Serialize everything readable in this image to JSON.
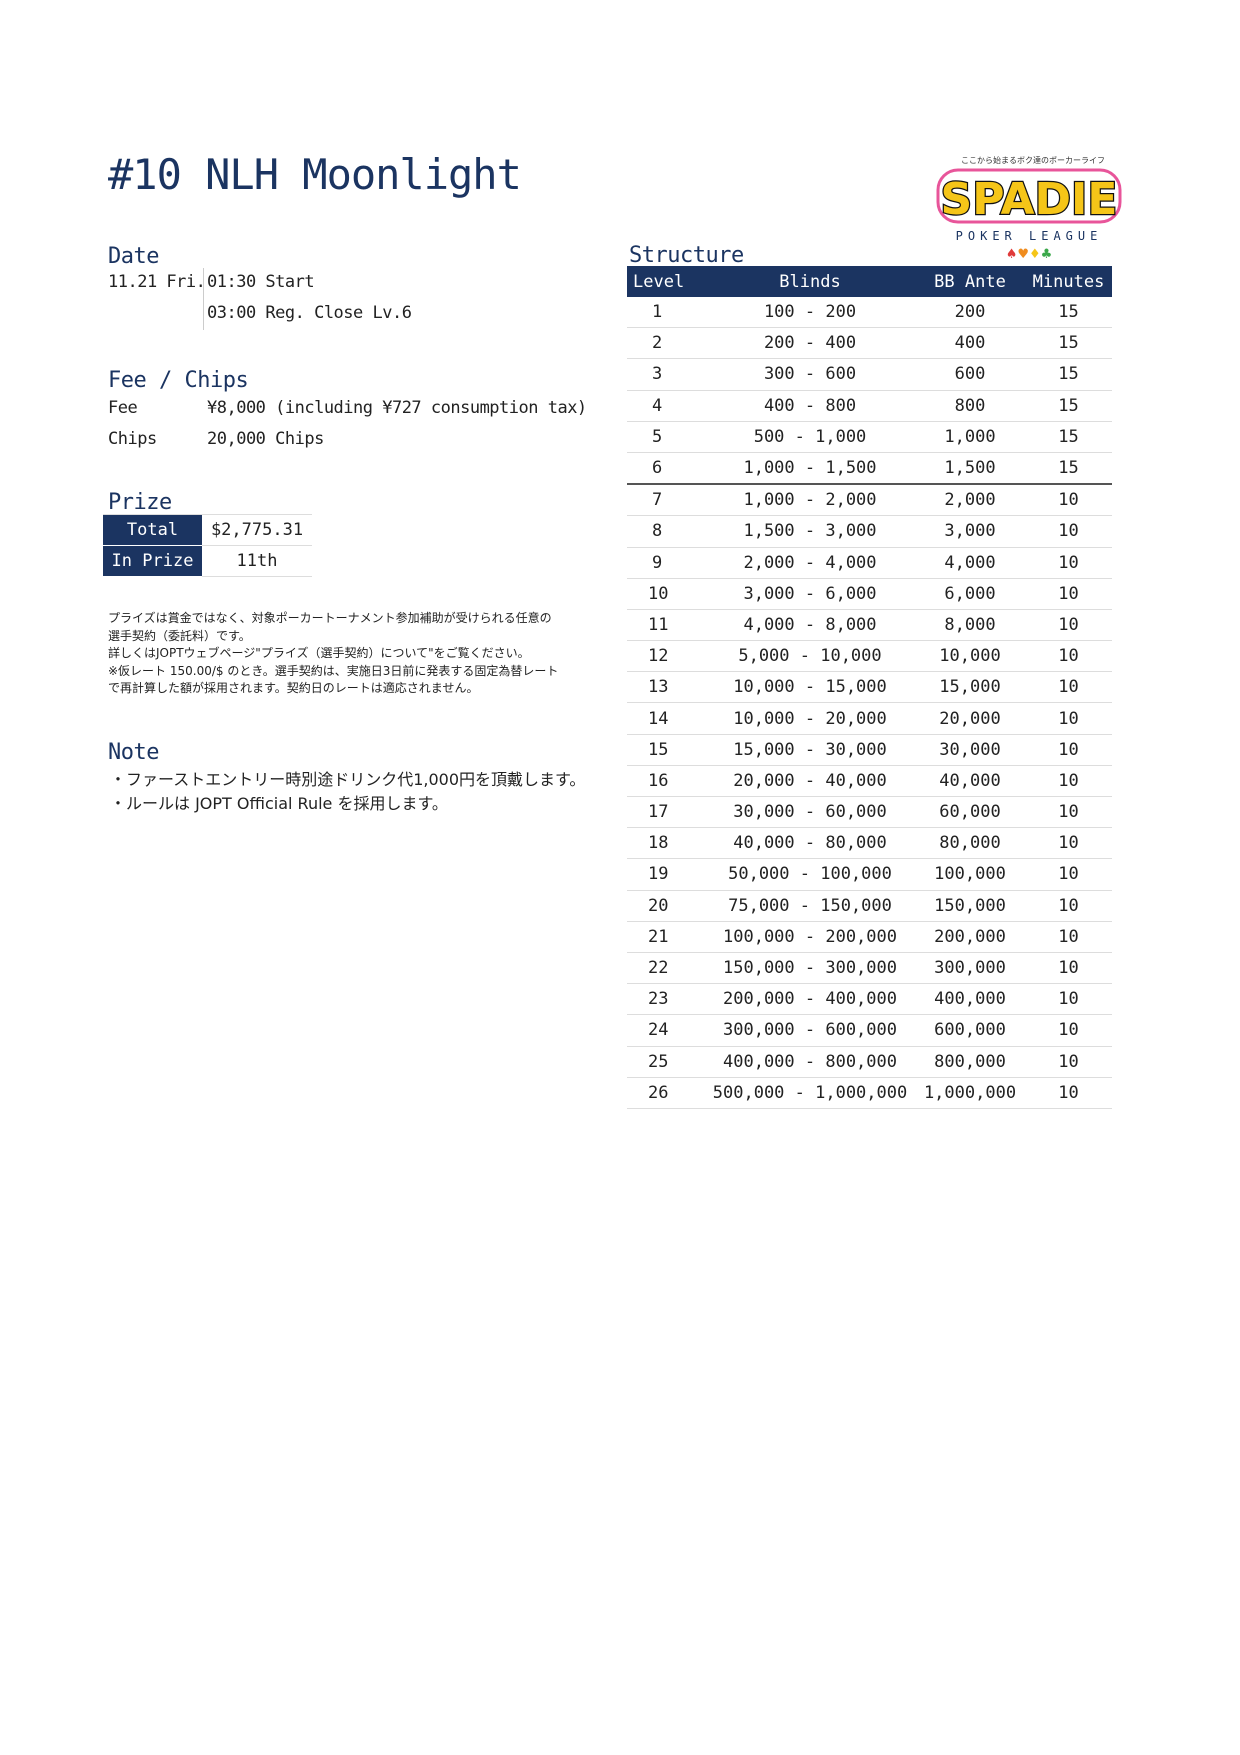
{
  "title": "#10 NLH Moonlight",
  "date": {
    "heading": "Date",
    "day": "11.21 Fri.",
    "lines": [
      "01:30 Start",
      "03:00 Reg. Close Lv.6"
    ]
  },
  "fee": {
    "heading": "Fee / Chips",
    "fee_label": "Fee",
    "fee_value": "¥8,000 (including ¥727 consumption tax)",
    "chips_label": "Chips",
    "chips_value": "20,000 Chips"
  },
  "prize": {
    "heading": "Prize",
    "total_label": "Total",
    "total_value": "$2,775.31",
    "in_prize_label": "In Prize",
    "in_prize_value": "11th"
  },
  "disclaimer": [
    "プライズは賞金ではなく、対象ポーカートーナメント参加補助が受けられる任意の",
    "選手契約（委託料）です。",
    "詳しくはJOPTウェブページ\"プライズ（選手契約）について\"をご覧ください。",
    "※仮レート 150.00/$ のとき。選手契約は、実施日3日前に発表する固定為替レート",
    "で再計算した額が採用されます。契約日のレートは適応されません。"
  ],
  "note": {
    "heading": "Note",
    "items": [
      "・ファーストエントリー時別途ドリンク代1,000円を頂戴します。",
      "・ルールは JOPT Official Rule を採用します。"
    ]
  },
  "logo": {
    "tagline": "ここから始まるボク達のポーカーライフ",
    "name": "SPADIE",
    "sub": "POKER LEAGUE"
  },
  "structure": {
    "heading": "Structure",
    "columns": [
      "Level",
      "Blinds",
      "BB Ante",
      "Minutes"
    ],
    "rows": [
      [
        "1",
        "100 - 200",
        "200",
        "15"
      ],
      [
        "2",
        "200 - 400",
        "400",
        "15"
      ],
      [
        "3",
        "300 - 600",
        "600",
        "15"
      ],
      [
        "4",
        "400 - 800",
        "800",
        "15"
      ],
      [
        "5",
        "500 - 1,000",
        "1,000",
        "15"
      ],
      [
        "6",
        "1,000 - 1,500",
        "1,500",
        "15"
      ],
      [
        "7",
        "1,000 - 2,000",
        "2,000",
        "10"
      ],
      [
        "8",
        "1,500 - 3,000",
        "3,000",
        "10"
      ],
      [
        "9",
        "2,000 - 4,000",
        "4,000",
        "10"
      ],
      [
        "10",
        "3,000 - 6,000",
        "6,000",
        "10"
      ],
      [
        "11",
        "4,000 - 8,000",
        "8,000",
        "10"
      ],
      [
        "12",
        "5,000 - 10,000",
        "10,000",
        "10"
      ],
      [
        "13",
        "10,000 - 15,000",
        "15,000",
        "10"
      ],
      [
        "14",
        "10,000 - 20,000",
        "20,000",
        "10"
      ],
      [
        "15",
        "15,000 - 30,000",
        "30,000",
        "10"
      ],
      [
        "16",
        "20,000 - 40,000",
        "40,000",
        "10"
      ],
      [
        "17",
        "30,000 - 60,000",
        "60,000",
        "10"
      ],
      [
        "18",
        "40,000 - 80,000",
        "80,000",
        "10"
      ],
      [
        "19",
        "50,000 - 100,000",
        "100,000",
        "10"
      ],
      [
        "20",
        "75,000 - 150,000",
        "150,000",
        "10"
      ],
      [
        "21",
        "100,000 - 200,000",
        "200,000",
        "10"
      ],
      [
        "22",
        "150,000 - 300,000",
        "300,000",
        "10"
      ],
      [
        "23",
        "200,000 - 400,000",
        "400,000",
        "10"
      ],
      [
        "24",
        "300,000 - 600,000",
        "600,000",
        "10"
      ],
      [
        "25",
        "400,000 - 800,000",
        "800,000",
        "10"
      ],
      [
        "26",
        "500,000 - 1,000,000",
        "1,000,000",
        "10"
      ]
    ]
  },
  "colors": {
    "navy": "#1b3461",
    "logo_yellow": "#f5c518",
    "logo_pink": "#e8559a"
  }
}
